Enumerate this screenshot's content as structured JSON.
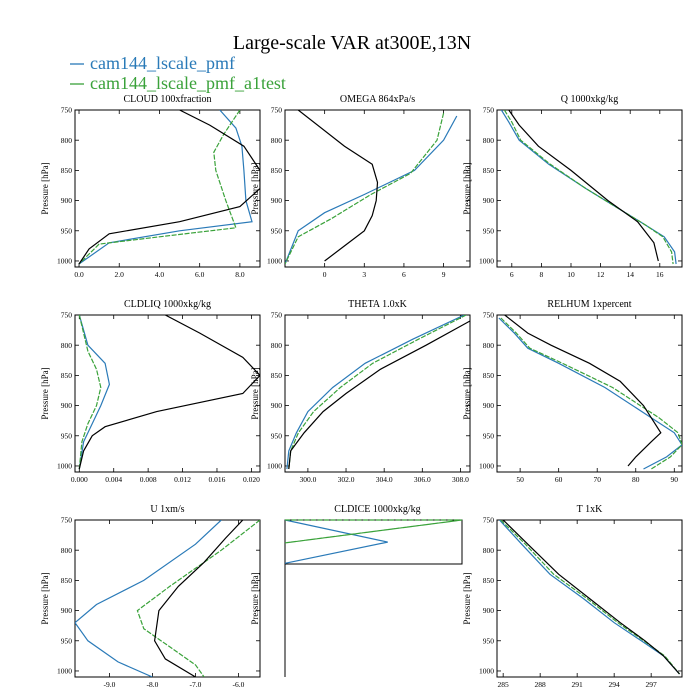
{
  "figure": {
    "title": "Large-scale VAR at300E,13N",
    "legend": [
      {
        "label": "cam144_lscale_pmf",
        "color": "#2a7ab8"
      },
      {
        "label": "cam144_lscale_pmf_a1test",
        "color": "#3aa23a"
      }
    ],
    "ref_color": "#000000"
  },
  "chart_data": [
    {
      "type": "line",
      "title": "CLOUD 100xfraction",
      "ylabel": "Pressure [hPa]",
      "xlim": [
        -0.2,
        9.0
      ],
      "ylim": [
        750,
        1010
      ],
      "xticks": [
        0.0,
        2.0,
        4.0,
        6.0,
        8.0
      ],
      "xtick_labels": [
        "0.0",
        "2.0",
        "4.0",
        "6.0",
        "8.0"
      ],
      "yticks": [
        750,
        800,
        850,
        900,
        950,
        1000
      ],
      "series": [
        {
          "role": "black",
          "x": [
            5.0,
            6.5,
            8.2,
            9.0,
            9.0,
            8.0,
            5.0,
            1.5,
            0.5,
            0.0
          ],
          "y": [
            750,
            775,
            810,
            850,
            880,
            910,
            935,
            955,
            980,
            1005
          ]
        },
        {
          "role": "blue",
          "x": [
            7.0,
            7.8,
            8.1,
            8.2,
            8.3,
            8.6,
            5.0,
            1.5,
            0.0
          ],
          "y": [
            750,
            780,
            810,
            850,
            900,
            935,
            950,
            970,
            1005
          ]
        },
        {
          "role": "green",
          "x": [
            8.0,
            7.2,
            6.7,
            6.8,
            7.3,
            7.8,
            4.0,
            1.0,
            0.0
          ],
          "y": [
            750,
            790,
            820,
            850,
            900,
            945,
            960,
            972,
            1005
          ]
        }
      ]
    },
    {
      "type": "line",
      "title": "OMEGA 864xPa/s",
      "ylabel": "Pressure [hPa]",
      "xlim": [
        -3.0,
        11.0
      ],
      "ylim": [
        750,
        1010
      ],
      "xticks": [
        0,
        3,
        6,
        9
      ],
      "xtick_labels": [
        "0",
        "3",
        "6",
        "9"
      ],
      "yticks": [
        750,
        800,
        850,
        900,
        950,
        1000
      ],
      "series": [
        {
          "role": "black",
          "x": [
            -2.0,
            1.5,
            3.6,
            4.0,
            3.9,
            3.6,
            3.0,
            1.5,
            0.0
          ],
          "y": [
            750,
            810,
            840,
            870,
            900,
            925,
            950,
            975,
            1000
          ]
        },
        {
          "role": "blue",
          "x": [
            10.0,
            9.0,
            6.8,
            3.0,
            0.0,
            -2.0,
            -3.0
          ],
          "y": [
            760,
            800,
            850,
            890,
            920,
            950,
            1005
          ]
        },
        {
          "role": "green",
          "x": [
            9.0,
            8.5,
            6.5,
            3.5,
            0.5,
            -2.0,
            -3.0
          ],
          "y": [
            755,
            800,
            855,
            890,
            930,
            960,
            1005
          ]
        }
      ]
    },
    {
      "type": "line",
      "title": "Q 1000xkg/kg",
      "ylabel": "Pressure [hPa]",
      "xlim": [
        5.0,
        17.5
      ],
      "ylim": [
        750,
        1010
      ],
      "xticks": [
        6,
        8,
        10,
        12,
        14,
        16
      ],
      "xtick_labels": [
        "6",
        "8",
        "10",
        "12",
        "14",
        "16"
      ],
      "yticks": [
        750,
        800,
        850,
        900,
        950,
        1000
      ],
      "series": [
        {
          "role": "black",
          "x": [
            5.8,
            6.5,
            7.8,
            10.0,
            12.5,
            14.5,
            15.6,
            15.9
          ],
          "y": [
            750,
            775,
            810,
            850,
            900,
            935,
            970,
            1000
          ]
        },
        {
          "role": "blue",
          "x": [
            5.3,
            5.8,
            6.5,
            8.5,
            11.0,
            13.0,
            15.0,
            16.3,
            17.0,
            17.1
          ],
          "y": [
            750,
            770,
            800,
            840,
            880,
            910,
            940,
            960,
            985,
            1005
          ]
        },
        {
          "role": "green",
          "x": [
            5.5,
            6.0,
            6.6,
            8.6,
            11.0,
            13.0,
            15.0,
            16.2,
            16.8,
            16.9
          ],
          "y": [
            750,
            770,
            800,
            840,
            880,
            910,
            940,
            960,
            985,
            1005
          ]
        }
      ]
    },
    {
      "type": "line",
      "title": "CLDLIQ 1000xkg/kg",
      "ylabel": "Pressure [hPa]",
      "xlim": [
        -0.0005,
        0.021
      ],
      "ylim": [
        750,
        1010
      ],
      "xticks": [
        0.0,
        0.004,
        0.008,
        0.012,
        0.016,
        0.02
      ],
      "xtick_labels": [
        "0.000",
        "0.004",
        "0.008",
        "0.012",
        "0.016",
        "0.020"
      ],
      "yticks": [
        750,
        800,
        850,
        900,
        950,
        1000
      ],
      "series": [
        {
          "role": "black",
          "x": [
            0.01,
            0.014,
            0.019,
            0.021,
            0.019,
            0.009,
            0.003,
            0.0015,
            0.0005,
            0.0
          ],
          "y": [
            750,
            780,
            820,
            850,
            880,
            910,
            935,
            950,
            975,
            1005
          ]
        },
        {
          "role": "blue",
          "x": [
            0.0,
            0.001,
            0.003,
            0.0035,
            0.0025,
            0.0015,
            0.0005,
            0.0
          ],
          "y": [
            750,
            800,
            830,
            865,
            900,
            930,
            960,
            1005
          ]
        },
        {
          "role": "green",
          "x": [
            0.0,
            0.001,
            0.002,
            0.0025,
            0.002,
            0.001,
            0.0003,
            0.0
          ],
          "y": [
            750,
            810,
            840,
            870,
            900,
            930,
            960,
            1005
          ]
        }
      ]
    },
    {
      "type": "line",
      "title": "THETA 1.0xK",
      "ylabel": "Pressure [hPa]",
      "xlim": [
        298.8,
        308.5
      ],
      "ylim": [
        750,
        1010
      ],
      "xticks": [
        300.0,
        302.0,
        304.0,
        306.0,
        308.0
      ],
      "xtick_labels": [
        "300.0",
        "302.0",
        "304.0",
        "306.0",
        "308.0"
      ],
      "yticks": [
        750,
        800,
        850,
        900,
        950,
        1000
      ],
      "series": [
        {
          "role": "black",
          "x": [
            308.5,
            306.2,
            303.8,
            302.0,
            300.8,
            299.8,
            299.1,
            299.0
          ],
          "y": [
            760,
            800,
            840,
            880,
            910,
            945,
            975,
            1005
          ]
        },
        {
          "role": "blue",
          "x": [
            308.2,
            305.5,
            303.0,
            301.3,
            300.0,
            299.4,
            299.0,
            298.9
          ],
          "y": [
            750,
            790,
            830,
            870,
            910,
            945,
            975,
            1005
          ]
        },
        {
          "role": "green",
          "x": [
            308.3,
            305.8,
            303.4,
            301.7,
            300.3,
            299.5,
            299.1,
            299.0
          ],
          "y": [
            750,
            790,
            830,
            870,
            910,
            945,
            975,
            1005
          ]
        }
      ]
    },
    {
      "type": "line",
      "title": "RELHUM 1xpercent",
      "ylabel": "Pressure [hPa]",
      "xlim": [
        44.0,
        92.0
      ],
      "ylim": [
        750,
        1010
      ],
      "xticks": [
        50,
        60,
        70,
        80,
        90
      ],
      "xtick_labels": [
        "50",
        "60",
        "70",
        "80",
        "90"
      ],
      "yticks": [
        750,
        800,
        850,
        900,
        950,
        1000
      ],
      "series": [
        {
          "role": "black",
          "x": [
            46.0,
            52.0,
            58.0,
            68.0,
            76.0,
            82.0,
            86.5,
            84.0,
            80.0,
            78.0
          ],
          "y": [
            750,
            780,
            800,
            830,
            860,
            900,
            945,
            960,
            985,
            1000
          ]
        },
        {
          "role": "blue",
          "x": [
            44.5,
            48.5,
            52.0,
            60.0,
            72.0,
            84.0,
            90.0,
            92.0,
            88.0,
            82.0
          ],
          "y": [
            755,
            780,
            805,
            830,
            870,
            920,
            945,
            965,
            985,
            1005
          ]
        },
        {
          "role": "green",
          "x": [
            45.0,
            49.0,
            52.5,
            61.0,
            74.0,
            86.0,
            91.0,
            92.0,
            89.0,
            84.0
          ],
          "y": [
            755,
            780,
            805,
            830,
            870,
            920,
            945,
            965,
            985,
            1005
          ]
        }
      ]
    },
    {
      "type": "line",
      "title": "U 1xm/s",
      "ylabel": "Pressure [hPa]",
      "xlim": [
        -9.8,
        -5.5
      ],
      "ylim": [
        750,
        1010
      ],
      "xticks": [
        -9.0,
        -8.0,
        -7.0,
        -6.0
      ],
      "xtick_labels": [
        "-9.0",
        "-8.0",
        "-7.0",
        "-6.0"
      ],
      "yticks": [
        750,
        800,
        850,
        900,
        950,
        1000
      ],
      "series": [
        {
          "role": "black",
          "x": [
            -5.9,
            -6.3,
            -6.8,
            -7.4,
            -7.85,
            -7.95,
            -7.7,
            -7.0
          ],
          "y": [
            750,
            780,
            820,
            860,
            900,
            950,
            980,
            1010
          ]
        },
        {
          "role": "blue",
          "x": [
            -6.4,
            -7.0,
            -8.2,
            -9.3,
            -9.8,
            -9.5,
            -8.8,
            -8.0
          ],
          "y": [
            750,
            790,
            850,
            890,
            920,
            950,
            985,
            1010
          ]
        },
        {
          "role": "green",
          "x": [
            -5.5,
            -6.4,
            -7.6,
            -8.35,
            -8.2,
            -7.6,
            -7.0,
            -6.8
          ],
          "y": [
            750,
            800,
            860,
            900,
            930,
            960,
            990,
            1010
          ]
        }
      ]
    },
    {
      "type": "line",
      "title": "CLDICE 1000xkg/kg",
      "ylabel": "Pressure [hPa]",
      "xlim": [
        0.0,
        1.0
      ],
      "ylim": [
        750,
        820
      ],
      "xticks": [],
      "xtick_labels": [],
      "yticks": [],
      "ylabel_only": true,
      "series": [
        {
          "role": "blue",
          "x": [
            0.0,
            0.58,
            0.0
          ],
          "y": [
            750,
            777,
            803
          ]
        },
        {
          "role": "green",
          "x": [
            0.0,
            1.0,
            0.0,
            1.0
          ],
          "y": [
            750,
            750,
            778,
            750
          ]
        }
      ]
    },
    {
      "type": "line",
      "title": "T 1xK",
      "ylabel": "Pressure [hPa]",
      "xlim": [
        284.5,
        299.5
      ],
      "ylim": [
        750,
        1010
      ],
      "xticks": [
        285,
        288,
        291,
        294,
        297
      ],
      "xtick_labels": [
        "285",
        "288",
        "291",
        "294",
        "297"
      ],
      "yticks": [
        750,
        800,
        850,
        900,
        950,
        1000
      ],
      "series": [
        {
          "role": "black",
          "x": [
            285.0,
            287.0,
            289.5,
            292.0,
            294.5,
            296.5,
            298.0,
            299.3
          ],
          "y": [
            750,
            790,
            840,
            880,
            920,
            950,
            975,
            1005
          ]
        },
        {
          "role": "blue",
          "x": [
            284.7,
            286.5,
            288.8,
            291.5,
            294.0,
            296.2,
            298.0,
            299.3
          ],
          "y": [
            750,
            790,
            840,
            880,
            920,
            950,
            975,
            1005
          ]
        },
        {
          "role": "green",
          "x": [
            284.8,
            286.8,
            289.1,
            291.8,
            294.3,
            296.4,
            298.1,
            299.3
          ],
          "y": [
            750,
            790,
            840,
            880,
            920,
            950,
            975,
            1005
          ]
        }
      ]
    }
  ]
}
